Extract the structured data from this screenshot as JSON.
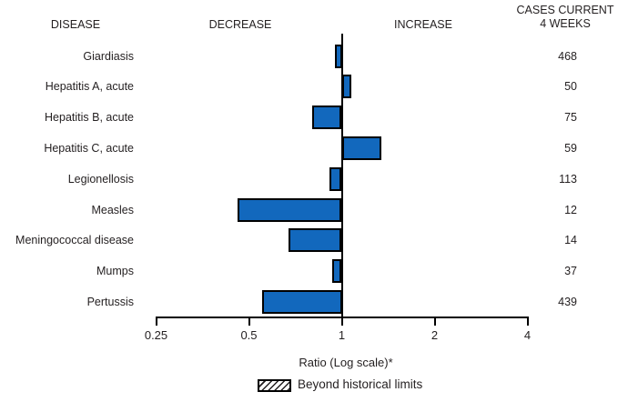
{
  "header": {
    "disease_col": "DISEASE",
    "decrease_col": "DECREASE",
    "increase_col": "INCREASE",
    "cases_col_line1": "CASES CURRENT",
    "cases_col_line2": "4 WEEKS"
  },
  "chart_data": {
    "type": "bar",
    "orientation": "horizontal",
    "x_scale": "log",
    "x_range": [
      0.25,
      4
    ],
    "x_ticks": [
      "0.25",
      "0.5",
      "1",
      "2",
      "4"
    ],
    "baseline_ratio": 1,
    "xlabel": "Ratio (Log scale)*",
    "bar_color": "#1268bd",
    "bar_border_color": "#000000",
    "rows": [
      {
        "disease": "Giardiasis",
        "ratio": 0.95,
        "cases_current_4_weeks": "468"
      },
      {
        "disease": "Hepatitis A, acute",
        "ratio": 1.07,
        "cases_current_4_weeks": "50"
      },
      {
        "disease": "Hepatitis B, acute",
        "ratio": 0.8,
        "cases_current_4_weeks": "75"
      },
      {
        "disease": "Hepatitis C, acute",
        "ratio": 1.34,
        "cases_current_4_weeks": "59"
      },
      {
        "disease": "Legionellosis",
        "ratio": 0.91,
        "cases_current_4_weeks": "113"
      },
      {
        "disease": "Measles",
        "ratio": 0.46,
        "cases_current_4_weeks": "12"
      },
      {
        "disease": "Meningococcal disease",
        "ratio": 0.67,
        "cases_current_4_weeks": "14"
      },
      {
        "disease": "Mumps",
        "ratio": 0.93,
        "cases_current_4_weeks": "37"
      },
      {
        "disease": "Pertussis",
        "ratio": 0.55,
        "cases_current_4_weeks": "439"
      }
    ],
    "legend": {
      "label": "Beyond historical limits",
      "swatch": "hatched"
    }
  },
  "colors": {
    "text": "#231f20",
    "axis": "#000000"
  }
}
